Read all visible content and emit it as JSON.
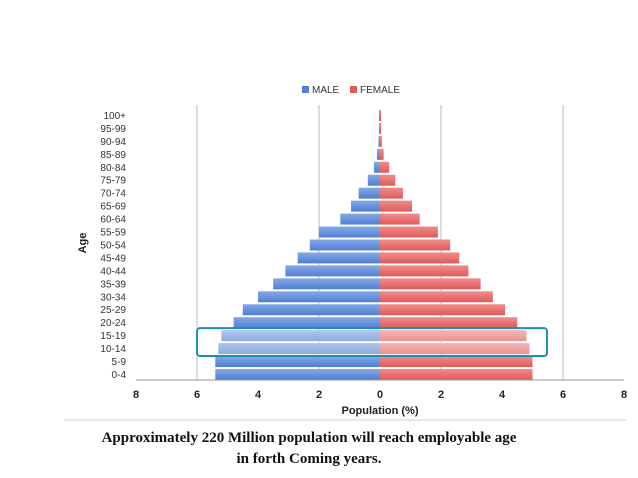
{
  "chart_data": {
    "type": "bar",
    "orientation": "horizontal",
    "layout": "population-pyramid",
    "categories": [
      "0-4",
      "5-9",
      "10-14",
      "15-19",
      "20-24",
      "25-29",
      "30-34",
      "35-39",
      "40-44",
      "45-49",
      "50-54",
      "55-59",
      "60-64",
      "65-69",
      "70-74",
      "75-79",
      "80-84",
      "85-89",
      "90-94",
      "95-99",
      "100+"
    ],
    "series": [
      {
        "name": "MALE",
        "color": "#4f7fd0",
        "side": "left",
        "values": [
          5.4,
          5.4,
          5.3,
          5.2,
          4.8,
          4.5,
          4.0,
          3.5,
          3.1,
          2.7,
          2.3,
          2.0,
          1.3,
          0.95,
          0.7,
          0.4,
          0.2,
          0.1,
          0.05,
          0.02,
          0.01
        ]
      },
      {
        "name": "FEMALE",
        "color": "#e05a5a",
        "side": "right",
        "values": [
          5.0,
          5.0,
          4.9,
          4.8,
          4.5,
          4.1,
          3.7,
          3.3,
          2.9,
          2.6,
          2.3,
          1.9,
          1.3,
          1.05,
          0.75,
          0.5,
          0.3,
          0.12,
          0.06,
          0.03,
          0.01
        ]
      }
    ],
    "xticks": [
      "8",
      "6",
      "4",
      "2",
      "0",
      "2",
      "4",
      "6",
      "8"
    ],
    "xlim": [
      -8,
      8
    ],
    "xlabel": "Population (%)",
    "ylabel": "Age",
    "legend_position": "top",
    "highlighted_categories": [
      "10-14",
      "15-19"
    ],
    "highlight_color": "#1f8fb0"
  },
  "caption": {
    "line1": "Approximately 220 Million population will reach employable age",
    "line2": "in forth Coming years."
  }
}
